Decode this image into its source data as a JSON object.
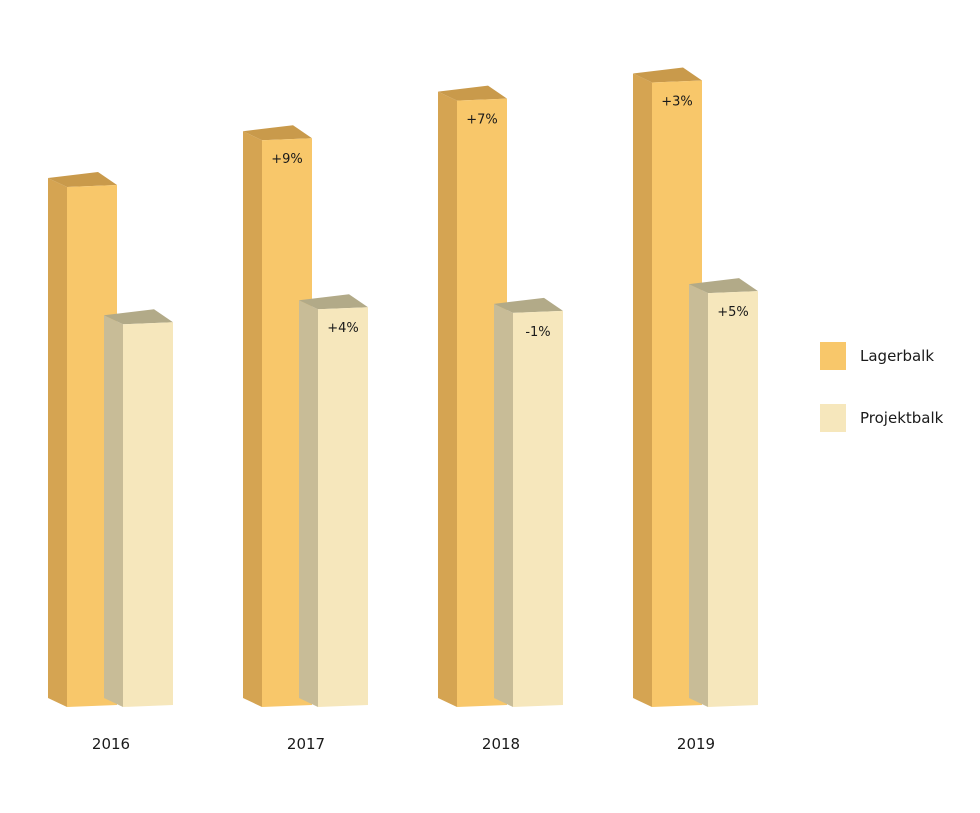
{
  "chart_data": {
    "type": "bar",
    "title": "",
    "xlabel": "",
    "ylabel": "",
    "categories": [
      "2016",
      "2017",
      "2018",
      "2019"
    ],
    "series": [
      {
        "name": "Lagerbalk",
        "values": [
          100,
          109,
          116.6,
          120.1
        ],
        "labels": [
          "",
          "+9%",
          "+7%",
          "+3%"
        ],
        "color": "#F8C76A",
        "side_color": "#D5A452",
        "top_color": "#C99A4B"
      },
      {
        "name": "Projektbalk",
        "values": [
          73.6,
          76.5,
          75.8,
          79.6
        ],
        "labels": [
          "",
          "+4%",
          "-1%",
          "+5%"
        ],
        "color": "#F6E7BC",
        "side_color": "#C8BC97",
        "top_color": "#B2AA88"
      }
    ],
    "ylim": [
      0,
      125
    ],
    "grid": false,
    "legend": "right"
  }
}
